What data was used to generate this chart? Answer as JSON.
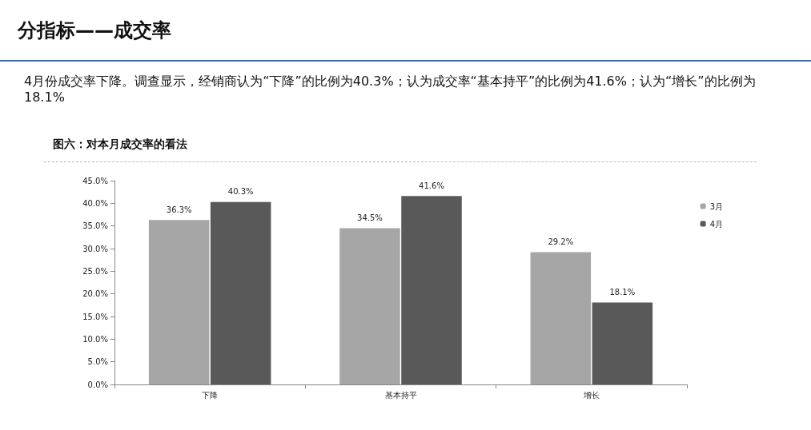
{
  "chart_data": {
    "type": "bar",
    "title": "分指标——成交率",
    "subtitle": "4月份成交率下降。调查显示，经销商认为“下降”的比例为40.3%；认为成交率“基本持平”的比例为41.6%；认为“增长”的比例为18.1%",
    "annotations": [
      "图六：对本月成交率的看法"
    ],
    "categories": [
      "下降",
      "基本持平",
      "增长"
    ],
    "series": [
      {
        "name": "3月",
        "color": "#a6a6a6",
        "values": [
          36.3,
          34.5,
          29.2
        ],
        "value_labels": [
          "36.3%",
          "34.5%",
          "29.2%"
        ]
      },
      {
        "name": "4月",
        "color": "#595959",
        "values": [
          40.3,
          41.6,
          18.1
        ],
        "value_labels": [
          "40.3%",
          "41.6%",
          "18.1%"
        ]
      }
    ],
    "ylim": [
      0,
      45
    ],
    "yticks": [
      {
        "value": 0,
        "label": "0.0%"
      },
      {
        "value": 5,
        "label": "5.0%"
      },
      {
        "value": 10,
        "label": "10.0%"
      },
      {
        "value": 15,
        "label": "15.0%"
      },
      {
        "value": 20,
        "label": "20.0%"
      },
      {
        "value": 25,
        "label": "25.0%"
      },
      {
        "value": 30,
        "label": "30.0%"
      },
      {
        "value": 35,
        "label": "35.0%"
      },
      {
        "value": 40,
        "label": "40.0%"
      },
      {
        "value": 45,
        "label": "45.0%"
      }
    ],
    "grid": false,
    "legend": "right"
  }
}
